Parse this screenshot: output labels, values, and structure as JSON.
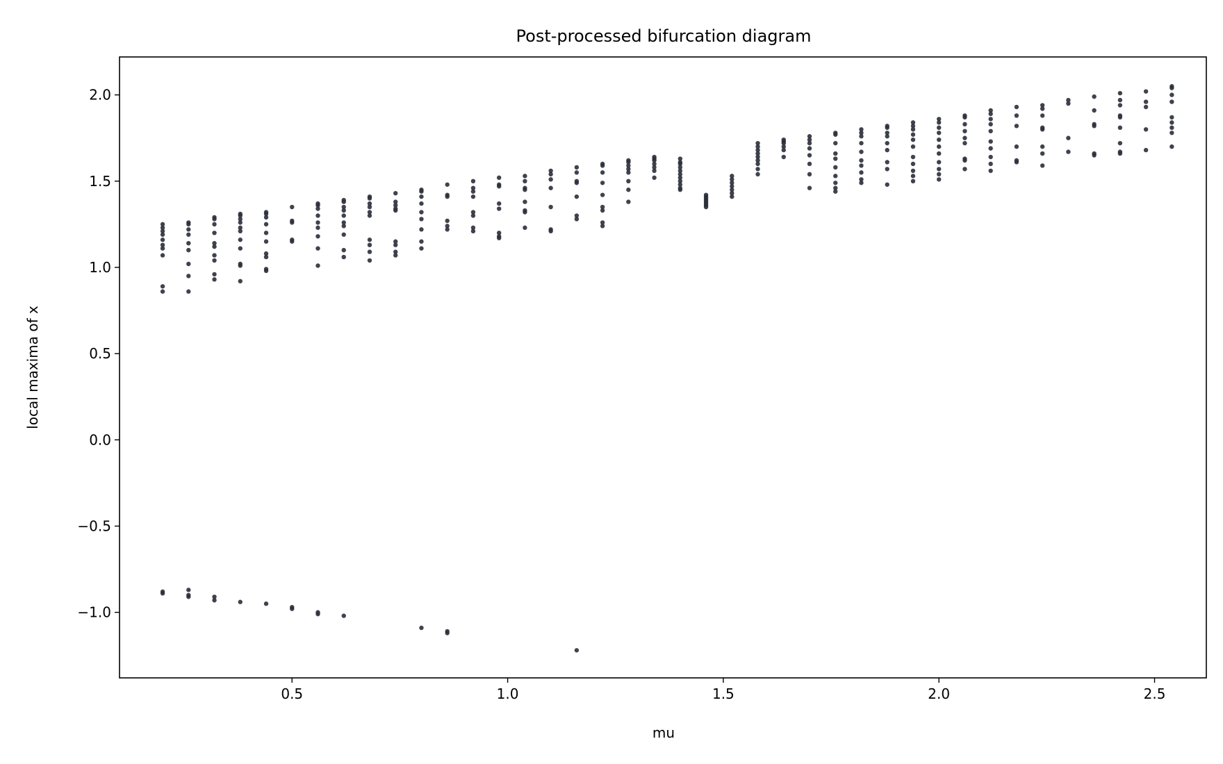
{
  "chart_data": {
    "type": "scatter",
    "title": "Post-processed bifurcation diagram",
    "xlabel": "mu",
    "ylabel": "local maxima of x",
    "xlim": [
      0.1,
      2.62
    ],
    "ylim": [
      -1.38,
      2.22
    ],
    "grid": false,
    "legend": "none",
    "marker_color": "#2b2f3a",
    "xticks": [
      {
        "value": 0.5,
        "label": "0.5"
      },
      {
        "value": 1.0,
        "label": "1.0"
      },
      {
        "value": 1.5,
        "label": "1.5"
      },
      {
        "value": 2.0,
        "label": "2.0"
      },
      {
        "value": 2.5,
        "label": "2.5"
      }
    ],
    "yticks": [
      {
        "value": -1.0,
        "label": "−1.0"
      },
      {
        "value": -0.5,
        "label": "−0.5"
      },
      {
        "value": 0.0,
        "label": "0.0"
      },
      {
        "value": 0.5,
        "label": "0.5"
      },
      {
        "value": 1.0,
        "label": "1.0"
      },
      {
        "value": 1.5,
        "label": "1.5"
      },
      {
        "value": 2.0,
        "label": "2.0"
      }
    ],
    "columns": [
      {
        "mu": 0.2,
        "y": [
          1.25,
          1.23,
          1.21,
          1.19,
          1.16,
          1.13,
          1.11,
          1.07,
          0.89,
          0.86,
          -0.88,
          -0.89
        ]
      },
      {
        "mu": 0.26,
        "y": [
          1.26,
          1.25,
          1.22,
          1.19,
          1.14,
          1.1,
          1.02,
          0.95,
          0.86,
          -0.87,
          -0.9,
          -0.91
        ]
      },
      {
        "mu": 0.32,
        "y": [
          1.29,
          1.28,
          1.25,
          1.2,
          1.14,
          1.12,
          1.07,
          1.04,
          0.96,
          0.93,
          -0.91,
          -0.93
        ]
      },
      {
        "mu": 0.38,
        "y": [
          1.31,
          1.3,
          1.28,
          1.26,
          1.23,
          1.21,
          1.16,
          1.11,
          1.02,
          1.01,
          0.92,
          -0.94
        ]
      },
      {
        "mu": 0.44,
        "y": [
          1.32,
          1.31,
          1.29,
          1.25,
          1.2,
          1.15,
          1.08,
          1.06,
          0.99,
          0.98,
          -0.95
        ]
      },
      {
        "mu": 0.5,
        "y": [
          1.35,
          1.27,
          1.26,
          1.16,
          1.15,
          -0.97,
          -0.98
        ]
      },
      {
        "mu": 0.56,
        "y": [
          1.37,
          1.36,
          1.34,
          1.3,
          1.26,
          1.23,
          1.18,
          1.11,
          1.01,
          -1.0,
          -1.01
        ]
      },
      {
        "mu": 0.62,
        "y": [
          1.39,
          1.38,
          1.35,
          1.33,
          1.3,
          1.26,
          1.24,
          1.19,
          1.1,
          1.06,
          -1.02
        ]
      },
      {
        "mu": 0.68,
        "y": [
          1.41,
          1.4,
          1.37,
          1.35,
          1.32,
          1.3,
          1.16,
          1.13,
          1.09,
          1.04
        ]
      },
      {
        "mu": 0.74,
        "y": [
          1.43,
          1.38,
          1.36,
          1.34,
          1.33,
          1.15,
          1.13,
          1.09,
          1.07
        ]
      },
      {
        "mu": 0.8,
        "y": [
          1.45,
          1.44,
          1.41,
          1.37,
          1.32,
          1.28,
          1.22,
          1.15,
          1.11,
          -1.09
        ]
      },
      {
        "mu": 0.86,
        "y": [
          1.48,
          1.42,
          1.41,
          1.27,
          1.24,
          1.22,
          -1.11,
          -1.12
        ]
      },
      {
        "mu": 0.92,
        "y": [
          1.5,
          1.46,
          1.44,
          1.41,
          1.32,
          1.3,
          1.23,
          1.21
        ]
      },
      {
        "mu": 0.98,
        "y": [
          1.52,
          1.48,
          1.47,
          1.37,
          1.34,
          1.2,
          1.18,
          1.17
        ]
      },
      {
        "mu": 1.04,
        "y": [
          1.53,
          1.5,
          1.46,
          1.45,
          1.38,
          1.33,
          1.32,
          1.23
        ]
      },
      {
        "mu": 1.1,
        "y": [
          1.56,
          1.54,
          1.51,
          1.46,
          1.35,
          1.22,
          1.21
        ]
      },
      {
        "mu": 1.16,
        "y": [
          1.58,
          1.55,
          1.5,
          1.49,
          1.41,
          1.3,
          1.28,
          -1.22
        ]
      },
      {
        "mu": 1.22,
        "y": [
          1.6,
          1.59,
          1.55,
          1.49,
          1.42,
          1.35,
          1.33,
          1.26,
          1.24
        ]
      },
      {
        "mu": 1.28,
        "y": [
          1.62,
          1.61,
          1.59,
          1.57,
          1.55,
          1.5,
          1.45,
          1.38
        ]
      },
      {
        "mu": 1.34,
        "y": [
          1.64,
          1.63,
          1.62,
          1.6,
          1.58,
          1.56,
          1.52
        ]
      },
      {
        "mu": 1.4,
        "y": [
          1.63,
          1.61,
          1.6,
          1.58,
          1.56,
          1.54,
          1.52,
          1.5,
          1.48,
          1.46,
          1.45
        ]
      },
      {
        "mu": 1.46,
        "y": [
          1.42,
          1.41,
          1.4,
          1.39,
          1.38,
          1.37,
          1.36,
          1.35
        ]
      },
      {
        "mu": 1.52,
        "y": [
          1.53,
          1.51,
          1.49,
          1.47,
          1.45,
          1.43,
          1.41
        ]
      },
      {
        "mu": 1.58,
        "y": [
          1.72,
          1.7,
          1.68,
          1.66,
          1.64,
          1.62,
          1.6,
          1.57,
          1.54
        ]
      },
      {
        "mu": 1.64,
        "y": [
          1.74,
          1.73,
          1.72,
          1.7,
          1.68,
          1.64
        ]
      },
      {
        "mu": 1.7,
        "y": [
          1.76,
          1.74,
          1.72,
          1.69,
          1.65,
          1.6,
          1.54,
          1.46
        ]
      },
      {
        "mu": 1.76,
        "y": [
          1.78,
          1.77,
          1.72,
          1.66,
          1.63,
          1.58,
          1.53,
          1.49,
          1.46,
          1.44
        ]
      },
      {
        "mu": 1.82,
        "y": [
          1.8,
          1.78,
          1.76,
          1.72,
          1.67,
          1.62,
          1.59,
          1.55,
          1.51,
          1.49
        ]
      },
      {
        "mu": 1.88,
        "y": [
          1.82,
          1.81,
          1.78,
          1.76,
          1.72,
          1.68,
          1.61,
          1.57,
          1.48
        ]
      },
      {
        "mu": 1.94,
        "y": [
          1.84,
          1.82,
          1.8,
          1.77,
          1.74,
          1.7,
          1.64,
          1.6,
          1.56,
          1.53,
          1.5
        ]
      },
      {
        "mu": 2.0,
        "y": [
          1.86,
          1.84,
          1.81,
          1.78,
          1.74,
          1.7,
          1.66,
          1.61,
          1.57,
          1.54,
          1.51
        ]
      },
      {
        "mu": 2.06,
        "y": [
          1.88,
          1.87,
          1.83,
          1.79,
          1.75,
          1.72,
          1.63,
          1.62,
          1.57
        ]
      },
      {
        "mu": 2.12,
        "y": [
          1.91,
          1.89,
          1.86,
          1.83,
          1.79,
          1.73,
          1.69,
          1.64,
          1.6,
          1.56
        ]
      },
      {
        "mu": 2.18,
        "y": [
          1.93,
          1.88,
          1.82,
          1.7,
          1.62,
          1.61
        ]
      },
      {
        "mu": 2.24,
        "y": [
          1.94,
          1.92,
          1.88,
          1.81,
          1.8,
          1.7,
          1.66,
          1.59
        ]
      },
      {
        "mu": 2.3,
        "y": [
          1.97,
          1.95,
          1.75,
          1.67
        ]
      },
      {
        "mu": 2.36,
        "y": [
          1.99,
          1.91,
          1.83,
          1.82,
          1.66,
          1.65
        ]
      },
      {
        "mu": 2.42,
        "y": [
          2.01,
          1.97,
          1.94,
          1.88,
          1.87,
          1.81,
          1.72,
          1.67,
          1.66
        ]
      },
      {
        "mu": 2.48,
        "y": [
          2.02,
          1.96,
          1.93,
          1.8,
          1.68
        ]
      },
      {
        "mu": 2.54,
        "y": [
          2.05,
          2.04,
          2.0,
          1.96,
          1.87,
          1.84,
          1.81,
          1.78,
          1.7
        ]
      }
    ]
  }
}
